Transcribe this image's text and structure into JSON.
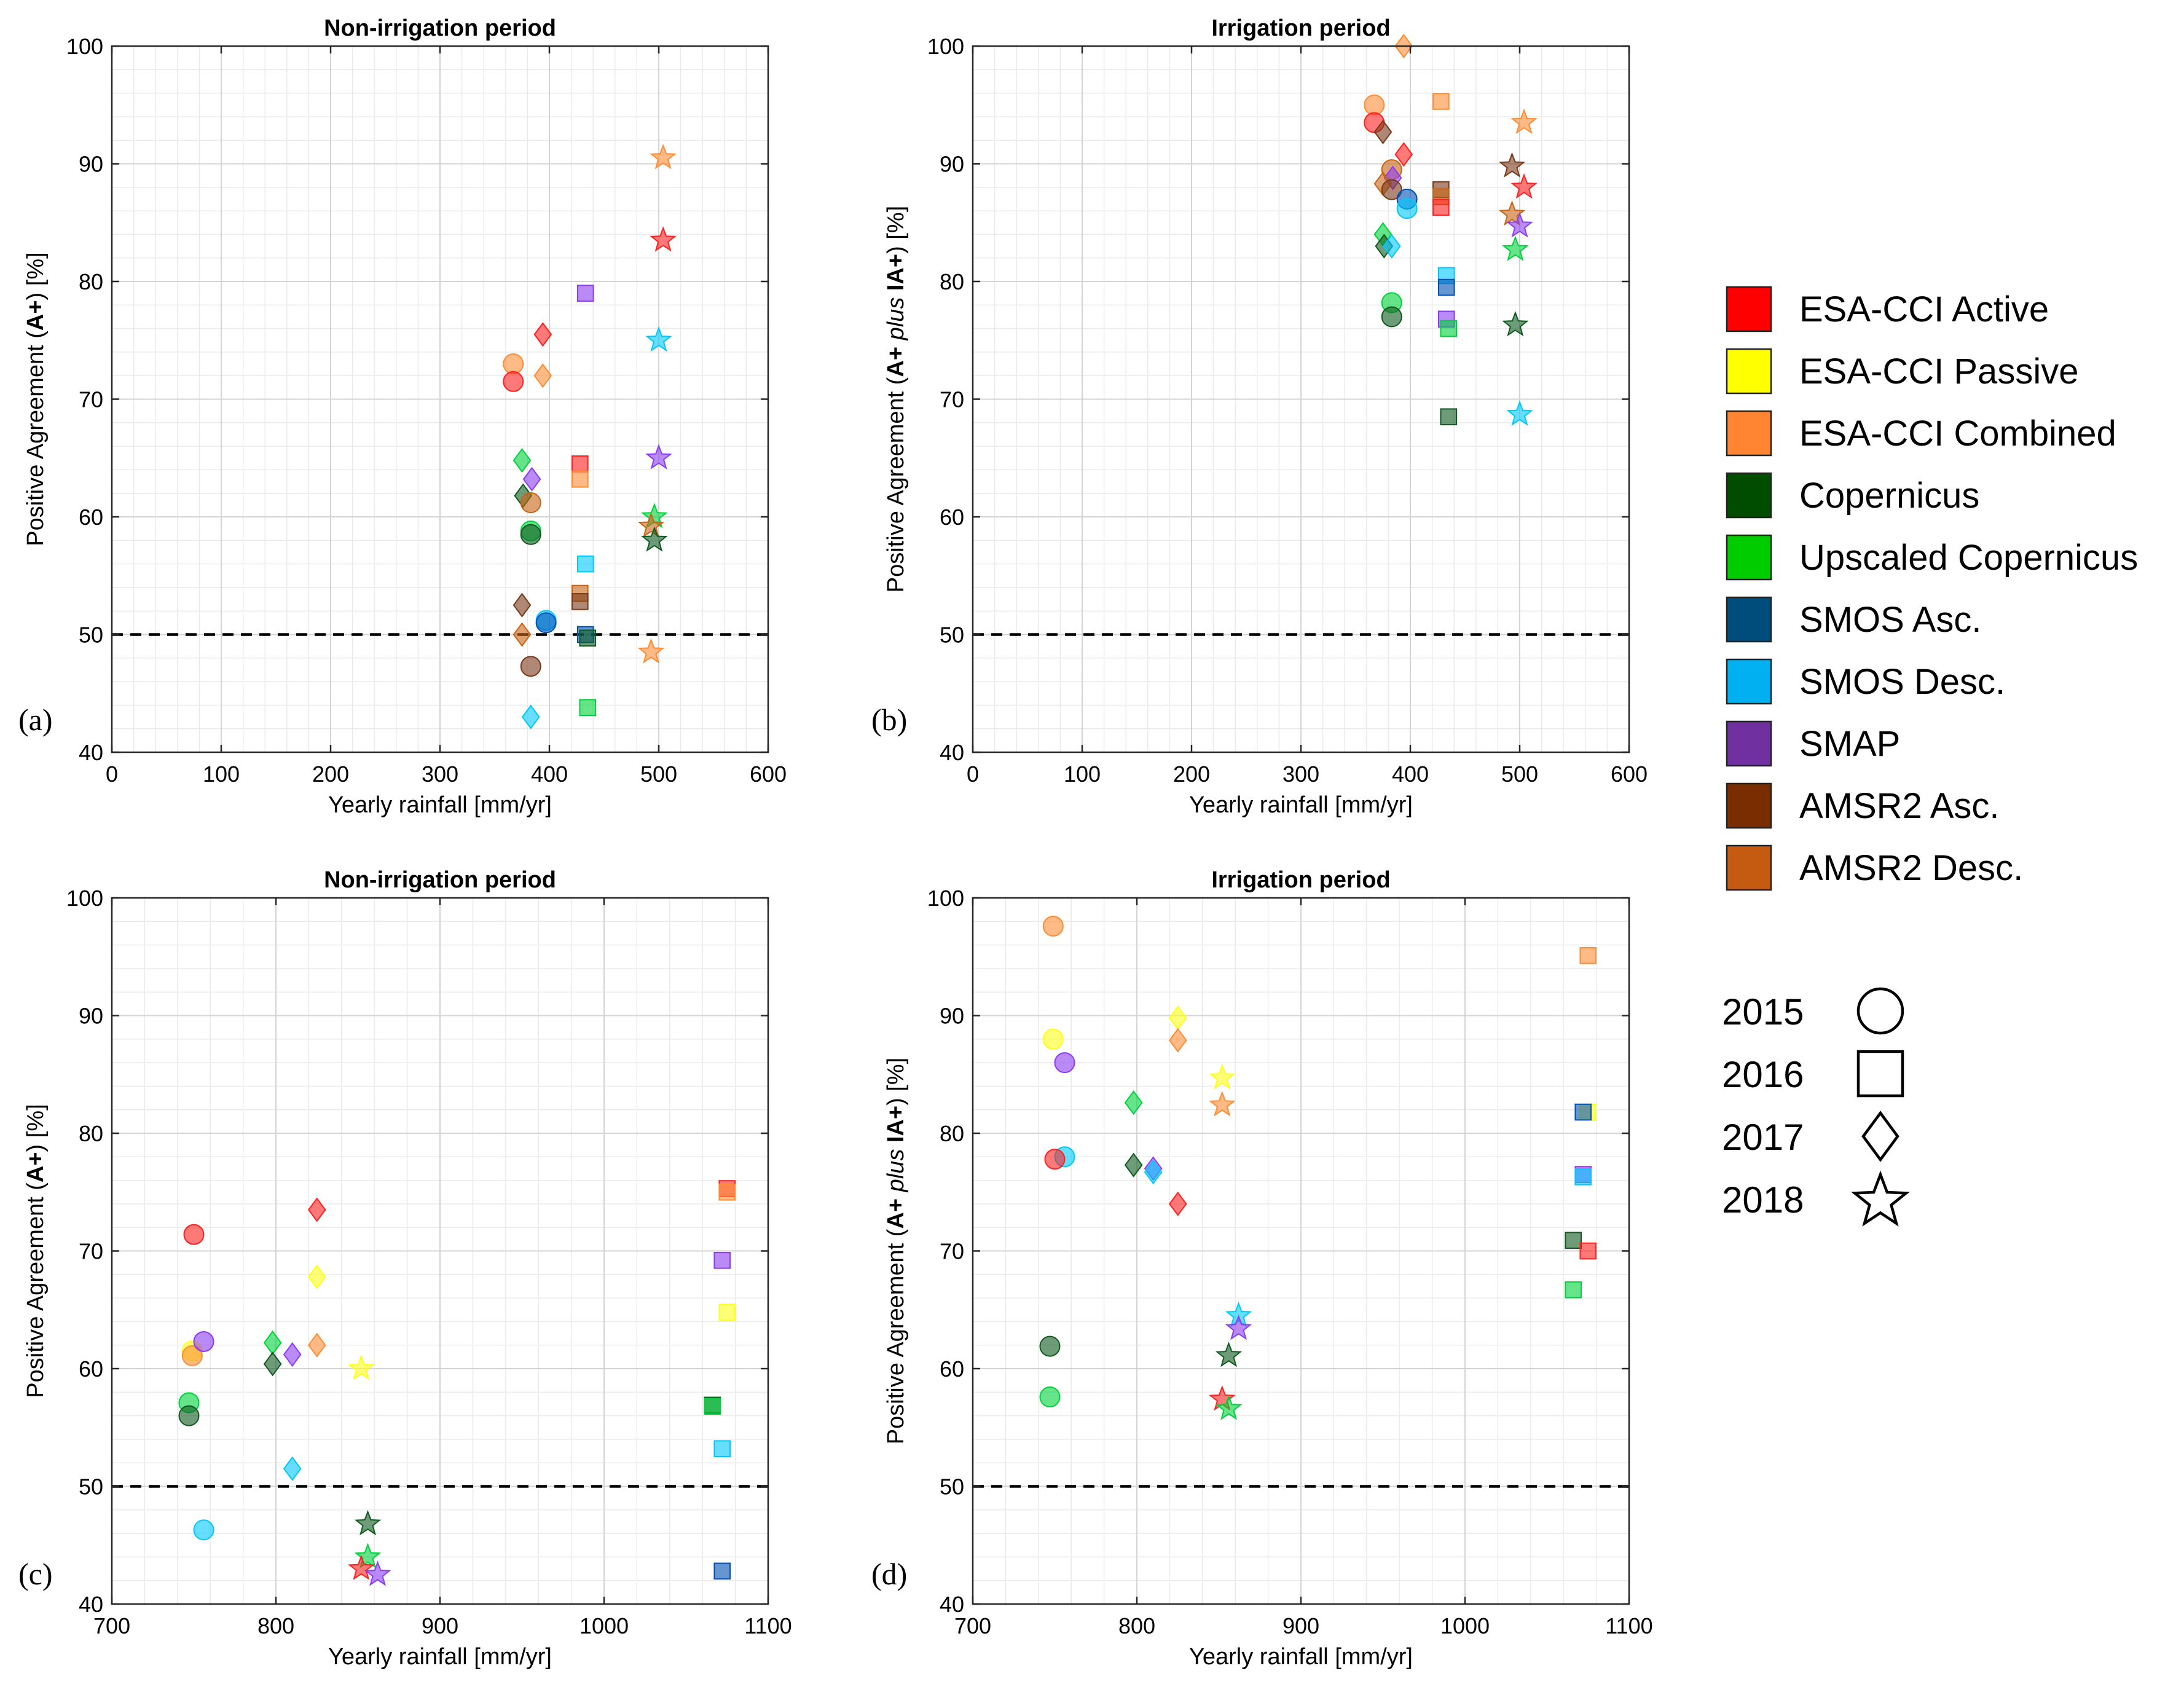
{
  "figure": {
    "panel_letters": [
      "(a)",
      "(b)",
      "(c)",
      "(d)"
    ]
  },
  "colors": {
    "ESA-CCI Active": "#ff2020",
    "ESA-CCI Passive": "#ffff1a",
    "ESA-CCI Combined": "#ff8c33",
    "Copernicus": "#0f5a1e",
    "Upscaled Copernicus": "#00d23c",
    "SMOS Asc.": "#0050b4",
    "SMOS Desc.": "#00c8ff",
    "SMAP": "#8c3cf0",
    "AMSR2 Asc.": "#7a3a1a",
    "AMSR2 Desc.": "#c86414"
  },
  "legend": {
    "products": [
      {
        "name": "ESA-CCI Active",
        "color": "#ff0000"
      },
      {
        "name": "ESA-CCI Passive",
        "color": "#ffff00"
      },
      {
        "name": "ESA-CCI Combined",
        "color": "#ff8533"
      },
      {
        "name": "Copernicus",
        "color": "#004d00"
      },
      {
        "name": "Upscaled Copernicus",
        "color": "#00cc00"
      },
      {
        "name": "SMOS Asc.",
        "color": "#004c7a"
      },
      {
        "name": "SMOS Desc.",
        "color": "#00b0f0"
      },
      {
        "name": "SMAP",
        "color": "#7030a0"
      },
      {
        "name": "AMSR2 Asc.",
        "color": "#7a2e00"
      },
      {
        "name": "AMSR2 Desc.",
        "color": "#c55a11"
      }
    ],
    "years": [
      {
        "label": "2015",
        "marker": "circle"
      },
      {
        "label": "2016",
        "marker": "square"
      },
      {
        "label": "2017",
        "marker": "diamond"
      },
      {
        "label": "2018",
        "marker": "star"
      }
    ]
  },
  "chart_data": [
    {
      "panel": "(a)",
      "type": "scatter",
      "title": "Non-irrigation period",
      "xlabel": "Yearly rainfall [mm/yr]",
      "ylabel_parts": [
        "Positive Agreement (",
        "A+",
        ") [%]"
      ],
      "xlim": [
        0,
        600
      ],
      "ylim": [
        40,
        100
      ],
      "xticks": [
        0,
        100,
        200,
        300,
        400,
        500,
        600
      ],
      "yticks": [
        40,
        50,
        60,
        70,
        80,
        90,
        100
      ],
      "reference_line": 50,
      "points": [
        {
          "p": "ESA-CCI Combined",
          "y": "2015",
          "x": 367,
          "v": 73.0
        },
        {
          "p": "ESA-CCI Active",
          "y": "2015",
          "x": 367,
          "v": 71.5
        },
        {
          "p": "ESA-CCI Active",
          "y": "2017",
          "x": 394,
          "v": 75.5
        },
        {
          "p": "ESA-CCI Combined",
          "y": "2017",
          "x": 394,
          "v": 72.0
        },
        {
          "p": "SMAP",
          "y": "2016",
          "x": 433,
          "v": 79.0
        },
        {
          "p": "ESA-CCI Combined",
          "y": "2018",
          "x": 504,
          "v": 90.5
        },
        {
          "p": "ESA-CCI Active",
          "y": "2018",
          "x": 504,
          "v": 83.5
        },
        {
          "p": "SMOS Desc.",
          "y": "2018",
          "x": 500,
          "v": 75.0
        },
        {
          "p": "SMAP",
          "y": "2018",
          "x": 500,
          "v": 65.0
        },
        {
          "p": "Upscaled Copernicus",
          "y": "2017",
          "x": 375,
          "v": 64.8
        },
        {
          "p": "SMAP",
          "y": "2017",
          "x": 384,
          "v": 63.2
        },
        {
          "p": "Copernicus",
          "y": "2017",
          "x": 376,
          "v": 61.8
        },
        {
          "p": "AMSR2 Desc.",
          "y": "2015",
          "x": 383,
          "v": 61.2
        },
        {
          "p": "Upscaled Copernicus",
          "y": "2015",
          "x": 383,
          "v": 58.8
        },
        {
          "p": "Copernicus",
          "y": "2015",
          "x": 383,
          "v": 58.5
        },
        {
          "p": "ESA-CCI Active",
          "y": "2016",
          "x": 428,
          "v": 64.5
        },
        {
          "p": "ESA-CCI Combined",
          "y": "2016",
          "x": 428,
          "v": 63.2
        },
        {
          "p": "SMOS Desc.",
          "y": "2016",
          "x": 433,
          "v": 56.0
        },
        {
          "p": "AMSR2 Desc.",
          "y": "2016",
          "x": 428,
          "v": 53.5
        },
        {
          "p": "AMSR2 Asc.",
          "y": "2016",
          "x": 428,
          "v": 52.8
        },
        {
          "p": "SMOS Asc.",
          "y": "2016",
          "x": 433,
          "v": 50.0
        },
        {
          "p": "Copernicus",
          "y": "2016",
          "x": 435,
          "v": 49.7
        },
        {
          "p": "Upscaled Copernicus",
          "y": "2016",
          "x": 435,
          "v": 43.8
        },
        {
          "p": "SMOS Desc.",
          "y": "2015",
          "x": 397,
          "v": 51.2
        },
        {
          "p": "SMOS Asc.",
          "y": "2015",
          "x": 397,
          "v": 51.0
        },
        {
          "p": "AMSR2 Asc.",
          "y": "2017",
          "x": 375,
          "v": 52.5
        },
        {
          "p": "AMSR2 Desc.",
          "y": "2017",
          "x": 375,
          "v": 50.0
        },
        {
          "p": "AMSR2 Asc.",
          "y": "2015",
          "x": 383,
          "v": 47.3
        },
        {
          "p": "SMOS Desc.",
          "y": "2017",
          "x": 383,
          "v": 43.0
        },
        {
          "p": "Upscaled Copernicus",
          "y": "2018",
          "x": 496,
          "v": 60.0
        },
        {
          "p": "AMSR2 Desc.",
          "y": "2018",
          "x": 493,
          "v": 59.2
        },
        {
          "p": "Copernicus",
          "y": "2018",
          "x": 496,
          "v": 58.0
        },
        {
          "p": "ESA-CCI Combined",
          "y": "2018",
          "x": 493,
          "v": 48.5
        }
      ]
    },
    {
      "panel": "(b)",
      "type": "scatter",
      "title": "Irrigation period",
      "xlabel": "Yearly rainfall [mm/yr]",
      "ylabel_parts": [
        "Positive Agreement (",
        "A+",
        " plus ",
        "IA+",
        ") [%]"
      ],
      "xlim": [
        0,
        600
      ],
      "ylim": [
        40,
        100
      ],
      "xticks": [
        0,
        100,
        200,
        300,
        400,
        500,
        600
      ],
      "yticks": [
        40,
        50,
        60,
        70,
        80,
        90,
        100
      ],
      "reference_line": 50,
      "points": [
        {
          "p": "ESA-CCI Combined",
          "y": "2017",
          "x": 394,
          "v": 100.0
        },
        {
          "p": "ESA-CCI Combined",
          "y": "2015",
          "x": 367,
          "v": 95.0
        },
        {
          "p": "ESA-CCI Active",
          "y": "2015",
          "x": 367,
          "v": 93.5
        },
        {
          "p": "AMSR2 Asc.",
          "y": "2017",
          "x": 375,
          "v": 92.7
        },
        {
          "p": "ESA-CCI Active",
          "y": "2017",
          "x": 394,
          "v": 90.8
        },
        {
          "p": "AMSR2 Desc.",
          "y": "2015",
          "x": 383,
          "v": 89.5
        },
        {
          "p": "SMAP",
          "y": "2017",
          "x": 384,
          "v": 88.8
        },
        {
          "p": "AMSR2 Desc.",
          "y": "2017",
          "x": 375,
          "v": 88.3
        },
        {
          "p": "AMSR2 Asc.",
          "y": "2015",
          "x": 383,
          "v": 87.8
        },
        {
          "p": "SMOS Asc.",
          "y": "2015",
          "x": 397,
          "v": 87.0
        },
        {
          "p": "SMOS Desc.",
          "y": "2015",
          "x": 397,
          "v": 86.2
        },
        {
          "p": "ESA-CCI Combined",
          "y": "2016",
          "x": 428,
          "v": 95.3
        },
        {
          "p": "AMSR2 Asc.",
          "y": "2016",
          "x": 428,
          "v": 87.8
        },
        {
          "p": "AMSR2 Desc.",
          "y": "2016",
          "x": 428,
          "v": 87.2
        },
        {
          "p": "ESA-CCI Active",
          "y": "2016",
          "x": 428,
          "v": 86.3
        },
        {
          "p": "Upscaled Copernicus",
          "y": "2017",
          "x": 375,
          "v": 84.0
        },
        {
          "p": "Copernicus",
          "y": "2017",
          "x": 376,
          "v": 83.0
        },
        {
          "p": "SMOS Desc.",
          "y": "2017",
          "x": 383,
          "v": 83.0
        },
        {
          "p": "Upscaled Copernicus",
          "y": "2015",
          "x": 383,
          "v": 78.2
        },
        {
          "p": "Copernicus",
          "y": "2015",
          "x": 383,
          "v": 77.0
        },
        {
          "p": "SMOS Desc.",
          "y": "2016",
          "x": 433,
          "v": 80.5
        },
        {
          "p": "SMOS Asc.",
          "y": "2016",
          "x": 433,
          "v": 79.5
        },
        {
          "p": "SMAP",
          "y": "2016",
          "x": 433,
          "v": 76.8
        },
        {
          "p": "Upscaled Copernicus",
          "y": "2016",
          "x": 435,
          "v": 76.0
        },
        {
          "p": "Copernicus",
          "y": "2016",
          "x": 435,
          "v": 68.5
        },
        {
          "p": "ESA-CCI Combined",
          "y": "2018",
          "x": 504,
          "v": 93.5
        },
        {
          "p": "AMSR2 Asc.",
          "y": "2018",
          "x": 493,
          "v": 89.8
        },
        {
          "p": "ESA-CCI Active",
          "y": "2018",
          "x": 504,
          "v": 88.0
        },
        {
          "p": "AMSR2 Desc.",
          "y": "2018",
          "x": 493,
          "v": 85.7
        },
        {
          "p": "SMAP",
          "y": "2018",
          "x": 500,
          "v": 84.7
        },
        {
          "p": "Upscaled Copernicus",
          "y": "2018",
          "x": 496,
          "v": 82.7
        },
        {
          "p": "Copernicus",
          "y": "2018",
          "x": 496,
          "v": 76.3
        },
        {
          "p": "SMOS Desc.",
          "y": "2018",
          "x": 500,
          "v": 68.7
        }
      ]
    },
    {
      "panel": "(c)",
      "type": "scatter",
      "title": "Non-irrigation period",
      "xlabel": "Yearly rainfall [mm/yr]",
      "ylabel_parts": [
        "Positive Agreement (",
        "A+",
        ") [%]"
      ],
      "xlim": [
        700,
        1100
      ],
      "ylim": [
        40,
        100
      ],
      "xticks": [
        700,
        800,
        900,
        1000,
        1100
      ],
      "yticks": [
        40,
        50,
        60,
        70,
        80,
        90,
        100
      ],
      "reference_line": 50,
      "points": [
        {
          "p": "ESA-CCI Active",
          "y": "2015",
          "x": 750,
          "v": 71.4
        },
        {
          "p": "ESA-CCI Passive",
          "y": "2015",
          "x": 749,
          "v": 61.5
        },
        {
          "p": "ESA-CCI Combined",
          "y": "2015",
          "x": 749,
          "v": 61.1
        },
        {
          "p": "SMAP",
          "y": "2015",
          "x": 756,
          "v": 62.3
        },
        {
          "p": "Upscaled Copernicus",
          "y": "2015",
          "x": 747,
          "v": 57.1
        },
        {
          "p": "Copernicus",
          "y": "2015",
          "x": 747,
          "v": 56.0
        },
        {
          "p": "SMOS Desc.",
          "y": "2015",
          "x": 756,
          "v": 46.3
        },
        {
          "p": "Upscaled Copernicus",
          "y": "2017",
          "x": 798,
          "v": 62.2
        },
        {
          "p": "Copernicus",
          "y": "2017",
          "x": 798,
          "v": 60.4
        },
        {
          "p": "SMAP",
          "y": "2017",
          "x": 810,
          "v": 61.2
        },
        {
          "p": "SMOS Desc.",
          "y": "2017",
          "x": 810,
          "v": 51.5
        },
        {
          "p": "ESA-CCI Active",
          "y": "2017",
          "x": 825,
          "v": 73.5
        },
        {
          "p": "ESA-CCI Passive",
          "y": "2017",
          "x": 825,
          "v": 67.8
        },
        {
          "p": "ESA-CCI Combined",
          "y": "2017",
          "x": 825,
          "v": 62.0
        },
        {
          "p": "ESA-CCI Passive",
          "y": "2018",
          "x": 852,
          "v": 60.0
        },
        {
          "p": "Copernicus",
          "y": "2018",
          "x": 856,
          "v": 46.8
        },
        {
          "p": "Upscaled Copernicus",
          "y": "2018",
          "x": 856,
          "v": 44.0
        },
        {
          "p": "ESA-CCI Active",
          "y": "2018",
          "x": 852,
          "v": 43.0
        },
        {
          "p": "SMAP",
          "y": "2018",
          "x": 862,
          "v": 42.5
        },
        {
          "p": "ESA-CCI Active",
          "y": "2016",
          "x": 1075,
          "v": 75.3
        },
        {
          "p": "ESA-CCI Combined",
          "y": "2016",
          "x": 1075,
          "v": 75.0
        },
        {
          "p": "SMAP",
          "y": "2016",
          "x": 1072,
          "v": 69.2
        },
        {
          "p": "ESA-CCI Passive",
          "y": "2016",
          "x": 1075,
          "v": 64.8
        },
        {
          "p": "Copernicus",
          "y": "2016",
          "x": 1066,
          "v": 56.9
        },
        {
          "p": "Upscaled Copernicus",
          "y": "2016",
          "x": 1066,
          "v": 56.8
        },
        {
          "p": "SMOS Desc.",
          "y": "2016",
          "x": 1072,
          "v": 53.2
        },
        {
          "p": "SMOS Asc.",
          "y": "2016",
          "x": 1072,
          "v": 42.8
        }
      ]
    },
    {
      "panel": "(d)",
      "type": "scatter",
      "title": "Irrigation period",
      "xlabel": "Yearly rainfall [mm/yr]",
      "ylabel_parts": [
        "Positive Agreement (",
        "A+",
        " plus ",
        "IA+",
        ") [%]"
      ],
      "xlim": [
        700,
        1100
      ],
      "ylim": [
        40,
        100
      ],
      "xticks": [
        700,
        800,
        900,
        1000,
        1100
      ],
      "yticks": [
        40,
        50,
        60,
        70,
        80,
        90,
        100
      ],
      "reference_line": 50,
      "points": [
        {
          "p": "ESA-CCI Combined",
          "y": "2015",
          "x": 749,
          "v": 97.6
        },
        {
          "p": "ESA-CCI Passive",
          "y": "2015",
          "x": 749,
          "v": 88.0
        },
        {
          "p": "SMAP",
          "y": "2015",
          "x": 756,
          "v": 86.0
        },
        {
          "p": "SMOS Desc.",
          "y": "2015",
          "x": 756,
          "v": 78.0
        },
        {
          "p": "ESA-CCI Active",
          "y": "2015",
          "x": 750,
          "v": 77.8
        },
        {
          "p": "Copernicus",
          "y": "2015",
          "x": 747,
          "v": 61.9
        },
        {
          "p": "Upscaled Copernicus",
          "y": "2015",
          "x": 747,
          "v": 57.6
        },
        {
          "p": "Upscaled Copernicus",
          "y": "2017",
          "x": 798,
          "v": 82.6
        },
        {
          "p": "Copernicus",
          "y": "2017",
          "x": 798,
          "v": 77.3
        },
        {
          "p": "SMAP",
          "y": "2017",
          "x": 810,
          "v": 77.0
        },
        {
          "p": "SMOS Desc.",
          "y": "2017",
          "x": 810,
          "v": 76.7
        },
        {
          "p": "ESA-CCI Passive",
          "y": "2017",
          "x": 825,
          "v": 89.8
        },
        {
          "p": "ESA-CCI Combined",
          "y": "2017",
          "x": 825,
          "v": 87.9
        },
        {
          "p": "ESA-CCI Active",
          "y": "2017",
          "x": 825,
          "v": 74.0
        },
        {
          "p": "ESA-CCI Passive",
          "y": "2018",
          "x": 852,
          "v": 84.7
        },
        {
          "p": "ESA-CCI Combined",
          "y": "2018",
          "x": 852,
          "v": 82.4
        },
        {
          "p": "SMOS Desc.",
          "y": "2018",
          "x": 862,
          "v": 64.5
        },
        {
          "p": "SMAP",
          "y": "2018",
          "x": 862,
          "v": 63.4
        },
        {
          "p": "Copernicus",
          "y": "2018",
          "x": 856,
          "v": 61.1
        },
        {
          "p": "ESA-CCI Active",
          "y": "2018",
          "x": 852,
          "v": 57.4
        },
        {
          "p": "Upscaled Copernicus",
          "y": "2018",
          "x": 856,
          "v": 56.6
        },
        {
          "p": "ESA-CCI Combined",
          "y": "2016",
          "x": 1075,
          "v": 95.1
        },
        {
          "p": "ESA-CCI Passive",
          "y": "2016",
          "x": 1075,
          "v": 81.8
        },
        {
          "p": "SMOS Asc.",
          "y": "2016",
          "x": 1072,
          "v": 81.8
        },
        {
          "p": "SMAP",
          "y": "2016",
          "x": 1072,
          "v": 76.5
        },
        {
          "p": "SMOS Desc.",
          "y": "2016",
          "x": 1072,
          "v": 76.3
        },
        {
          "p": "Copernicus",
          "y": "2016",
          "x": 1066,
          "v": 70.9
        },
        {
          "p": "ESA-CCI Active",
          "y": "2016",
          "x": 1075,
          "v": 70.0
        },
        {
          "p": "Upscaled Copernicus",
          "y": "2016",
          "x": 1066,
          "v": 66.7
        }
      ]
    }
  ]
}
